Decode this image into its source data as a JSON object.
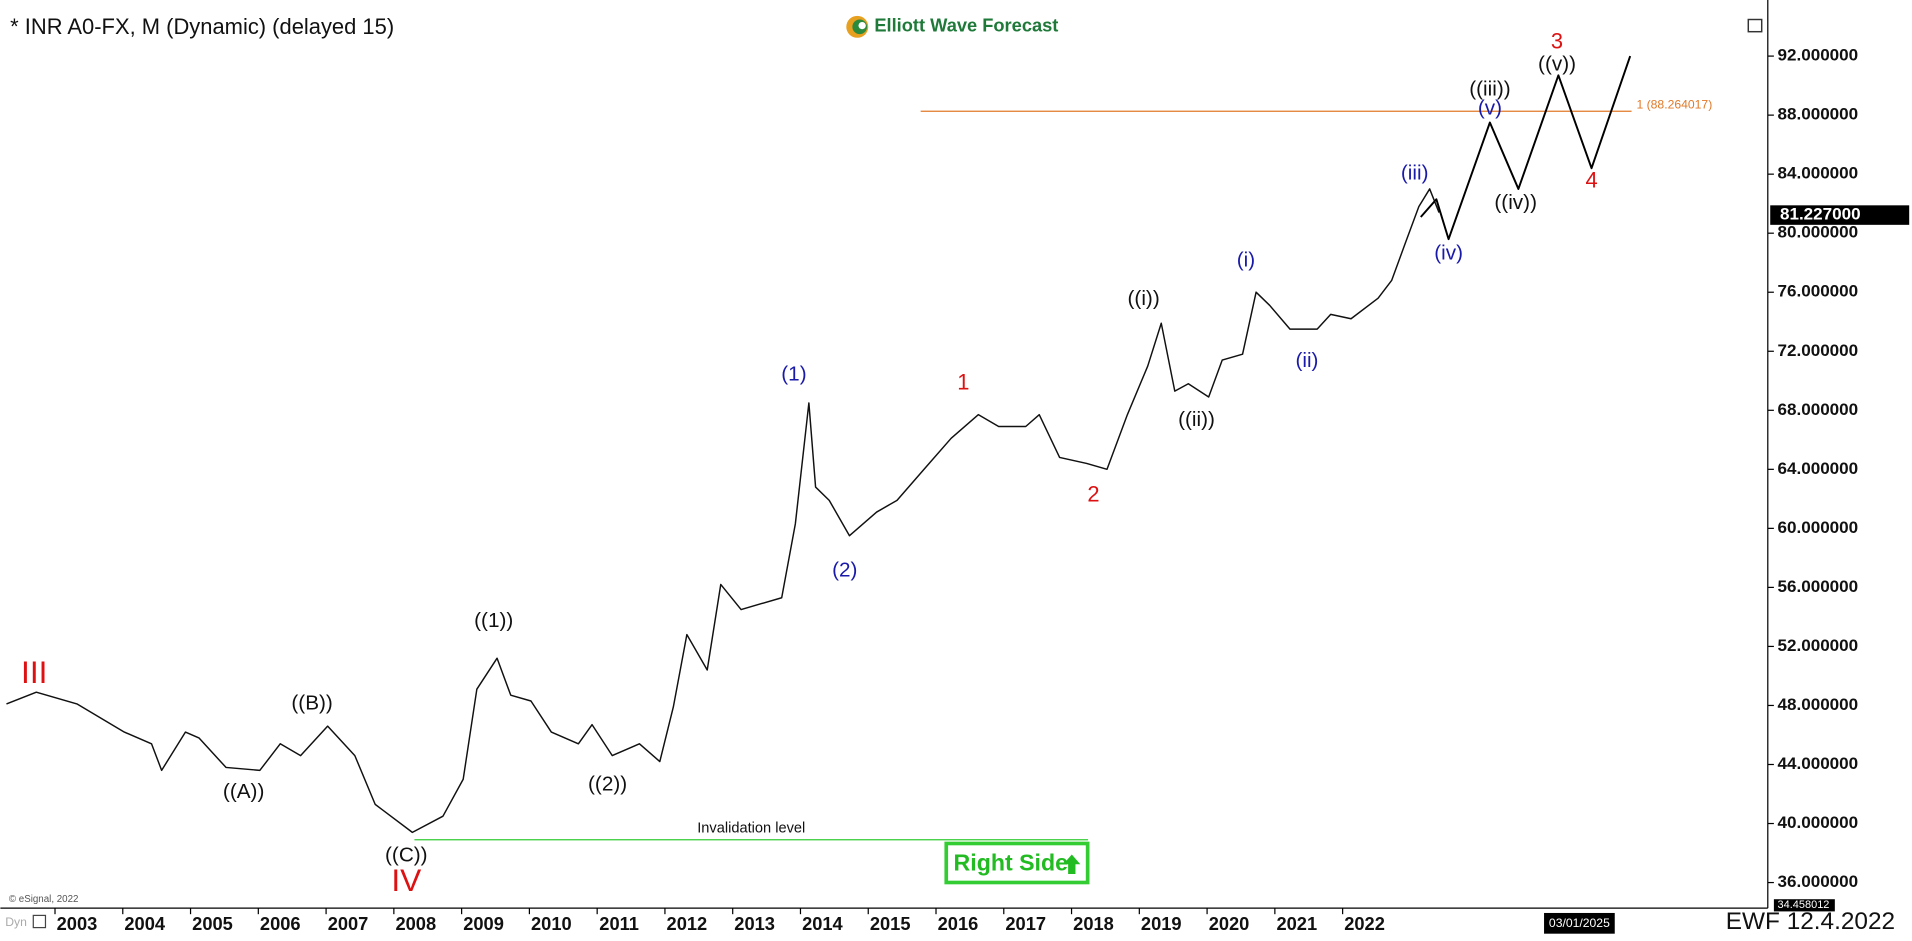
{
  "title": "* INR A0-FX, M (Dynamic) (delayed 15)",
  "logo": "Elliott Wave Forecast",
  "footer": "EWF 12.4.2022",
  "copyright": "© eSignal, 2022",
  "badge": "Right Side",
  "corner": "Dyn",
  "chart_data": {
    "type": "line",
    "xlim": [
      2001.96,
      2027.95
    ],
    "ylim": [
      34.27,
      95.14
    ],
    "xticks": [
      2003,
      2004,
      2005,
      2006,
      2007,
      2008,
      2009,
      2010,
      2011,
      2012,
      2013,
      2014,
      2015,
      2016,
      2017,
      2018,
      2019,
      2020,
      2021,
      2022
    ],
    "yticks": [
      {
        "value": 36,
        "label": "36.000000"
      },
      {
        "value": 40,
        "label": "40.000000"
      },
      {
        "value": 44,
        "label": "44.000000"
      },
      {
        "value": 48,
        "label": "48.000000"
      },
      {
        "value": 52,
        "label": "52.000000"
      },
      {
        "value": 56,
        "label": "56.000000"
      },
      {
        "value": 60,
        "label": "60.000000"
      },
      {
        "value": 64,
        "label": "64.000000"
      },
      {
        "value": 68,
        "label": "68.000000"
      },
      {
        "value": 72,
        "label": "72.000000"
      },
      {
        "value": 76,
        "label": "76.000000"
      },
      {
        "value": 80,
        "label": "80.000000"
      },
      {
        "value": 84,
        "label": "84.000000"
      },
      {
        "value": 88,
        "label": "88.000000"
      },
      {
        "value": 92,
        "label": "92.000000"
      }
    ],
    "series": [
      {
        "color": "#111111",
        "x": [
          2001.96,
          2002.4,
          2003.0,
          2003.7,
          2004.1,
          2004.25,
          2004.6,
          2004.8,
          2005.2,
          2005.7,
          2006.0,
          2006.3,
          2006.7,
          2007.1,
          2007.4,
          2007.95,
          2008.4,
          2008.7,
          2008.9,
          2009.2,
          2009.4,
          2009.7,
          2010.0,
          2010.4,
          2010.6,
          2010.9,
          2011.3,
          2011.6,
          2011.8,
          2012.0,
          2012.3,
          2012.5,
          2012.8,
          2013.1,
          2013.4,
          2013.6,
          2013.8,
          2013.9,
          2014.1,
          2014.4,
          2014.8,
          2015.1,
          2015.5,
          2015.9,
          2016.3,
          2016.6,
          2017.0,
          2017.2,
          2017.5,
          2017.9,
          2018.2,
          2018.5,
          2018.8,
          2019.0,
          2019.2,
          2019.4,
          2019.7,
          2019.9,
          2020.2,
          2020.4,
          2020.6,
          2020.9,
          2021.3,
          2021.5,
          2021.8,
          2022.2,
          2022.4,
          2022.6,
          2022.8,
          2022.96,
          2023.1
        ],
        "values": [
          48.1,
          48.9,
          48.1,
          46.2,
          45.4,
          43.6,
          46.2,
          45.8,
          43.8,
          43.6,
          45.4,
          44.6,
          46.6,
          44.6,
          41.3,
          39.4,
          40.5,
          43.0,
          49.1,
          51.2,
          48.7,
          48.3,
          46.2,
          45.4,
          46.7,
          44.6,
          45.4,
          44.2,
          47.9,
          52.8,
          50.4,
          56.2,
          54.5,
          54.9,
          55.3,
          60.3,
          68.5,
          62.8,
          61.9,
          59.5,
          61.1,
          61.9,
          64.0,
          66.1,
          67.7,
          66.9,
          66.9,
          67.7,
          64.8,
          64.4,
          64.0,
          67.7,
          71.0,
          73.9,
          69.3,
          69.8,
          68.9,
          71.4,
          71.8,
          76.0,
          75.1,
          73.5,
          73.5,
          74.5,
          74.2,
          75.6,
          76.8,
          79.3,
          81.8,
          83.0,
          81.4
        ]
      },
      {
        "color": "#000000",
        "x": [
          2022.83,
          2023.06,
          2023.24,
          2023.85,
          2024.27,
          2024.86,
          2025.35,
          2025.92
        ],
        "values": [
          81.1,
          82.3,
          79.6,
          87.5,
          83.0,
          90.7,
          84.4,
          92.0
        ]
      }
    ],
    "last_price": {
      "value": 81.227,
      "label": "81.227000"
    },
    "low_marker": {
      "value": 34.458012,
      "label": "34.458012"
    },
    "date_marker": {
      "value": 2025.17,
      "label": "03/01/2025"
    },
    "hlines": [
      {
        "label": "1 (88.264017)",
        "value": 88.264017,
        "x": [
          2015.45,
          2025.94
        ],
        "color": "#e07a2a"
      },
      {
        "label": "Invalidation level",
        "value": 38.9,
        "x": [
          2007.98,
          2017.92
        ],
        "color": "#33cc33"
      }
    ],
    "annotations": [
      {
        "text": "III",
        "x": 2002.37,
        "y": 50.1,
        "color": "#dd1111"
      },
      {
        "text": "((A))",
        "x": 2005.46,
        "y": 42.1,
        "color": "#111111"
      },
      {
        "text": "((B))",
        "x": 2006.47,
        "y": 48.1,
        "color": "#111111"
      },
      {
        "text": "((C))",
        "x": 2007.86,
        "y": 37.8,
        "color": "#111111"
      },
      {
        "text": "IV",
        "x": 2007.86,
        "y": 36.0,
        "color": "#dd1111"
      },
      {
        "text": "((1))",
        "x": 2009.15,
        "y": 53.7,
        "color": "#111111"
      },
      {
        "text": "((2))",
        "x": 2010.83,
        "y": 42.6,
        "color": "#111111"
      },
      {
        "text": "(1)",
        "x": 2013.58,
        "y": 70.4,
        "color": "#1a1aaa"
      },
      {
        "text": "(2)",
        "x": 2014.33,
        "y": 57.1,
        "color": "#1a1aaa"
      },
      {
        "text": "1",
        "x": 2016.08,
        "y": 69.8,
        "color": "#dd1111"
      },
      {
        "text": "2",
        "x": 2018.0,
        "y": 62.2,
        "color": "#dd1111"
      },
      {
        "text": "((i))",
        "x": 2018.74,
        "y": 75.5,
        "color": "#111111"
      },
      {
        "text": "((ii))",
        "x": 2019.52,
        "y": 67.3,
        "color": "#111111"
      },
      {
        "text": "(i)",
        "x": 2020.25,
        "y": 78.1,
        "color": "#1a1aaa"
      },
      {
        "text": "(ii)",
        "x": 2021.15,
        "y": 71.3,
        "color": "#1a1aaa"
      },
      {
        "text": "(iii)",
        "x": 2022.74,
        "y": 84.0,
        "color": "#1a1aaa"
      },
      {
        "text": "(iv)",
        "x": 2023.24,
        "y": 78.6,
        "color": "#1a1aaa"
      },
      {
        "text": "((iii))",
        "x": 2023.85,
        "y": 89.7,
        "color": "#111111"
      },
      {
        "text": "(v)",
        "x": 2023.85,
        "y": 88.4,
        "color": "#1a1aaa"
      },
      {
        "text": "((iv))",
        "x": 2024.23,
        "y": 82.0,
        "color": "#111111"
      },
      {
        "text": "3",
        "x": 2024.84,
        "y": 92.9,
        "color": "#dd1111"
      },
      {
        "text": "((v))",
        "x": 2024.84,
        "y": 91.4,
        "color": "#111111"
      },
      {
        "text": "4",
        "x": 2025.35,
        "y": 83.5,
        "color": "#dd1111"
      }
    ]
  }
}
